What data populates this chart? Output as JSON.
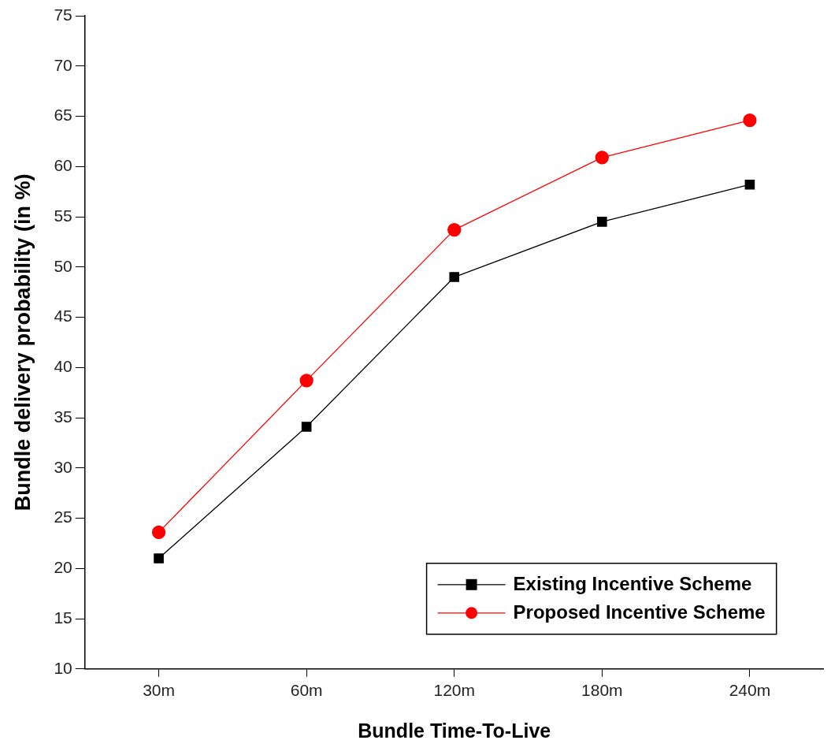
{
  "chart_data": {
    "type": "line",
    "xlabel": "Bundle Time-To-Live",
    "ylabel": "Bundle delivery probability (in %)",
    "categories": [
      "30m",
      "60m",
      "120m",
      "180m",
      "240m"
    ],
    "series": [
      {
        "name": "Existing Incentive Scheme",
        "color": "#000000",
        "marker": "square",
        "values": [
          21.0,
          34.1,
          49.0,
          54.5,
          58.2
        ]
      },
      {
        "name": "Proposed Incentive Scheme",
        "color": "#ff0000",
        "marker": "circle",
        "values": [
          23.6,
          38.7,
          53.7,
          60.9,
          64.6
        ]
      }
    ],
    "ylim": [
      10,
      75
    ],
    "yticks": [
      10,
      15,
      20,
      25,
      30,
      35,
      40,
      45,
      50,
      55,
      60,
      65,
      70,
      75
    ],
    "grid": false,
    "legend": "bottom right",
    "line_style": "solid"
  }
}
